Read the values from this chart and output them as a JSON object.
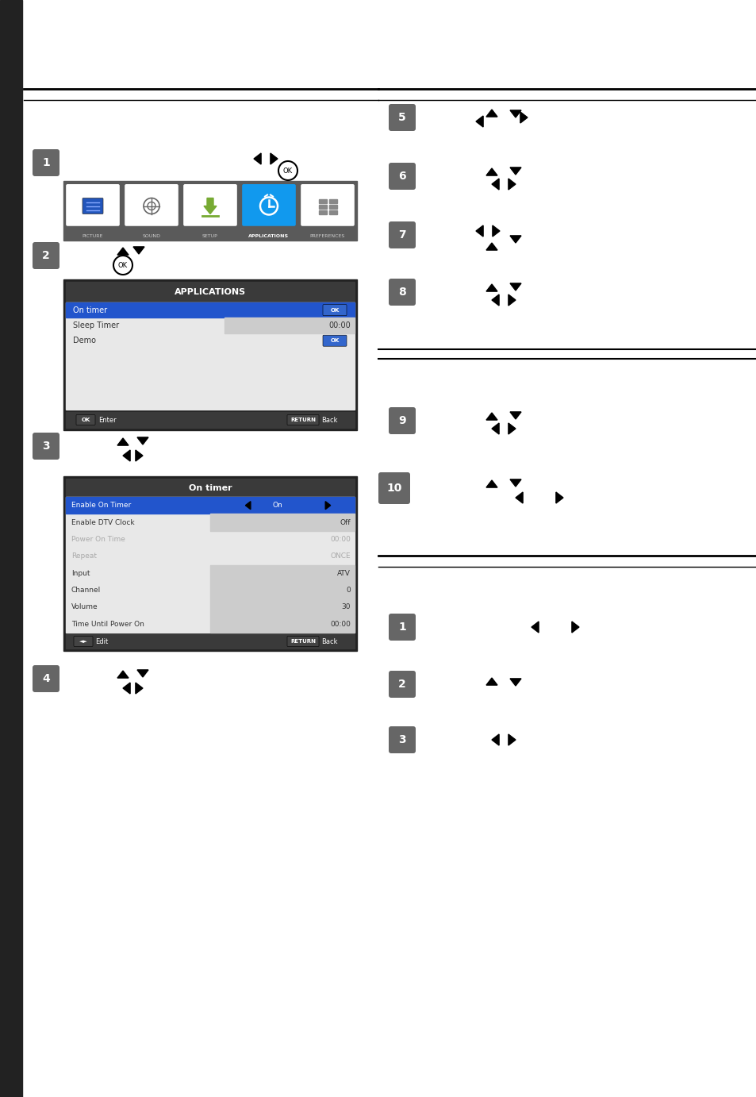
{
  "bg_color": "#ffffff",
  "left_sidebar_color": "#222222",
  "step_circle_color": "#666666",
  "step_text_color": "#ffffff",
  "menu_header_bg": "#3a3a3a",
  "menu_selected_bg": "#2255cc",
  "screen_border": "#222222",
  "icon_selected_bg": "#1199ee",
  "nav_icons": [
    {
      "label": "PICTURE",
      "selected": false
    },
    {
      "label": "SOUND",
      "selected": false
    },
    {
      "label": "SETUP",
      "selected": false
    },
    {
      "label": "APPLICATIONS",
      "selected": true
    },
    {
      "label": "PREFERENCES",
      "selected": false
    }
  ],
  "app_menu_items": [
    {
      "label": "On timer",
      "value": "OK",
      "selected": true,
      "shaded": false
    },
    {
      "label": "Sleep Timer",
      "value": "00:00",
      "selected": false,
      "shaded": true
    },
    {
      "label": "Demo",
      "value": "OK",
      "selected": false,
      "shaded": false
    }
  ],
  "on_timer_items": [
    {
      "label": "Enable On Timer",
      "value": "On",
      "selected": true,
      "shaded": false,
      "arrows": true,
      "greyed": false
    },
    {
      "label": "Enable DTV Clock",
      "value": "Off",
      "selected": false,
      "shaded": true,
      "arrows": false,
      "greyed": false
    },
    {
      "label": "Power On Time",
      "value": "00:00",
      "selected": false,
      "shaded": false,
      "arrows": false,
      "greyed": true
    },
    {
      "label": "Repeat",
      "value": "ONCE",
      "selected": false,
      "shaded": false,
      "arrows": false,
      "greyed": true
    },
    {
      "label": "Input",
      "value": "ATV",
      "selected": false,
      "shaded": true,
      "arrows": false,
      "greyed": false
    },
    {
      "label": "Channel",
      "value": "0",
      "selected": false,
      "shaded": true,
      "arrows": false,
      "greyed": false
    },
    {
      "label": "Volume",
      "value": "30",
      "selected": false,
      "shaded": true,
      "arrows": false,
      "greyed": false
    },
    {
      "label": "Time Until Power On",
      "value": "00:00",
      "selected": false,
      "shaded": true,
      "arrows": false,
      "greyed": false
    }
  ]
}
